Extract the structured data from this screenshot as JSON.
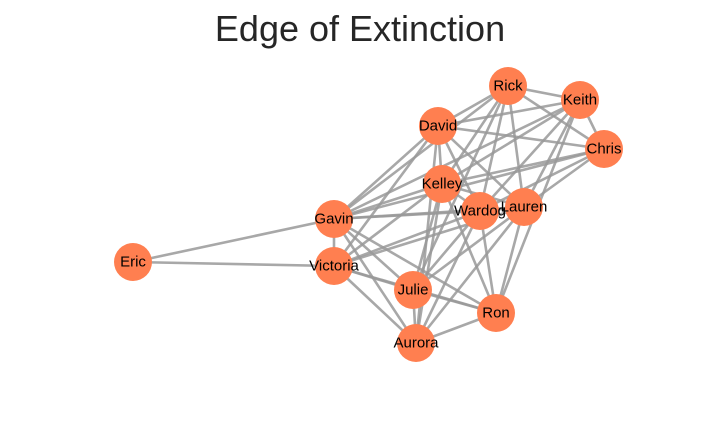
{
  "title": "Edge of Extinction",
  "colors": {
    "node": "#ff7f50",
    "edge": "#999999",
    "label": "#000000",
    "title": "#262626"
  },
  "network": {
    "nodes": [
      "Rick",
      "Keith",
      "David",
      "Chris",
      "Kelley",
      "Lauren",
      "Wardog",
      "Gavin",
      "Eric",
      "Victoria",
      "Julie",
      "Ron",
      "Aurora"
    ],
    "edges": [
      [
        "Rick",
        "Keith"
      ],
      [
        "Rick",
        "David"
      ],
      [
        "Rick",
        "Chris"
      ],
      [
        "Rick",
        "Kelley"
      ],
      [
        "Rick",
        "Wardog"
      ],
      [
        "Rick",
        "Lauren"
      ],
      [
        "Rick",
        "Gavin"
      ],
      [
        "Rick",
        "Julie"
      ],
      [
        "Keith",
        "David"
      ],
      [
        "Keith",
        "Chris"
      ],
      [
        "Keith",
        "Kelley"
      ],
      [
        "Keith",
        "Wardog"
      ],
      [
        "Keith",
        "Lauren"
      ],
      [
        "Keith",
        "Gavin"
      ],
      [
        "Keith",
        "Ron"
      ],
      [
        "David",
        "Chris"
      ],
      [
        "David",
        "Kelley"
      ],
      [
        "David",
        "Wardog"
      ],
      [
        "David",
        "Lauren"
      ],
      [
        "David",
        "Gavin"
      ],
      [
        "David",
        "Victoria"
      ],
      [
        "David",
        "Aurora"
      ],
      [
        "Chris",
        "Kelley"
      ],
      [
        "Chris",
        "Wardog"
      ],
      [
        "Chris",
        "Lauren"
      ],
      [
        "Chris",
        "Gavin"
      ],
      [
        "Kelley",
        "Wardog"
      ],
      [
        "Kelley",
        "Lauren"
      ],
      [
        "Kelley",
        "Gavin"
      ],
      [
        "Kelley",
        "Victoria"
      ],
      [
        "Kelley",
        "Julie"
      ],
      [
        "Kelley",
        "Ron"
      ],
      [
        "Kelley",
        "Aurora"
      ],
      [
        "Wardog",
        "Lauren"
      ],
      [
        "Wardog",
        "Gavin"
      ],
      [
        "Wardog",
        "Victoria"
      ],
      [
        "Wardog",
        "Julie"
      ],
      [
        "Wardog",
        "Ron"
      ],
      [
        "Wardog",
        "Aurora"
      ],
      [
        "Lauren",
        "Gavin"
      ],
      [
        "Lauren",
        "Victoria"
      ],
      [
        "Lauren",
        "Julie"
      ],
      [
        "Lauren",
        "Ron"
      ],
      [
        "Lauren",
        "Aurora"
      ],
      [
        "Gavin",
        "Eric"
      ],
      [
        "Gavin",
        "Victoria"
      ],
      [
        "Gavin",
        "Julie"
      ],
      [
        "Gavin",
        "Ron"
      ],
      [
        "Gavin",
        "Aurora"
      ],
      [
        "Eric",
        "Victoria"
      ],
      [
        "Victoria",
        "Julie"
      ],
      [
        "Victoria",
        "Ron"
      ],
      [
        "Victoria",
        "Aurora"
      ],
      [
        "Julie",
        "Ron"
      ],
      [
        "Julie",
        "Aurora"
      ],
      [
        "Ron",
        "Aurora"
      ]
    ]
  }
}
